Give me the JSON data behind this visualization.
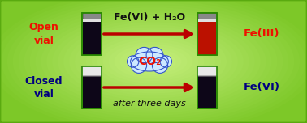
{
  "bg_color_outer": "#7dc828",
  "bg_color_inner": "#c8f080",
  "border_color": "#5aaa10",
  "arrow_top_label": "Fe(VI) + H₂O",
  "arrow_bottom_label": "after three days",
  "cloud_text": "CO₂",
  "left_top_label": "Open\nvial",
  "left_bottom_label": "Closed\nvial",
  "right_top_label": "Fe(III)",
  "right_bottom_label": "Fe(VI)",
  "label_red_color": "#ee1100",
  "label_blue_color": "#000080",
  "arrow_color": "#bb0000",
  "cloud_fill": "#cce8ff",
  "cloud_border": "#3355cc",
  "vial_dark_color": "#0d0618",
  "vial_red_color": "#bb1100",
  "vial_green_border": "#2a8a00",
  "figsize": [
    3.78,
    1.52
  ],
  "dpi": 100
}
